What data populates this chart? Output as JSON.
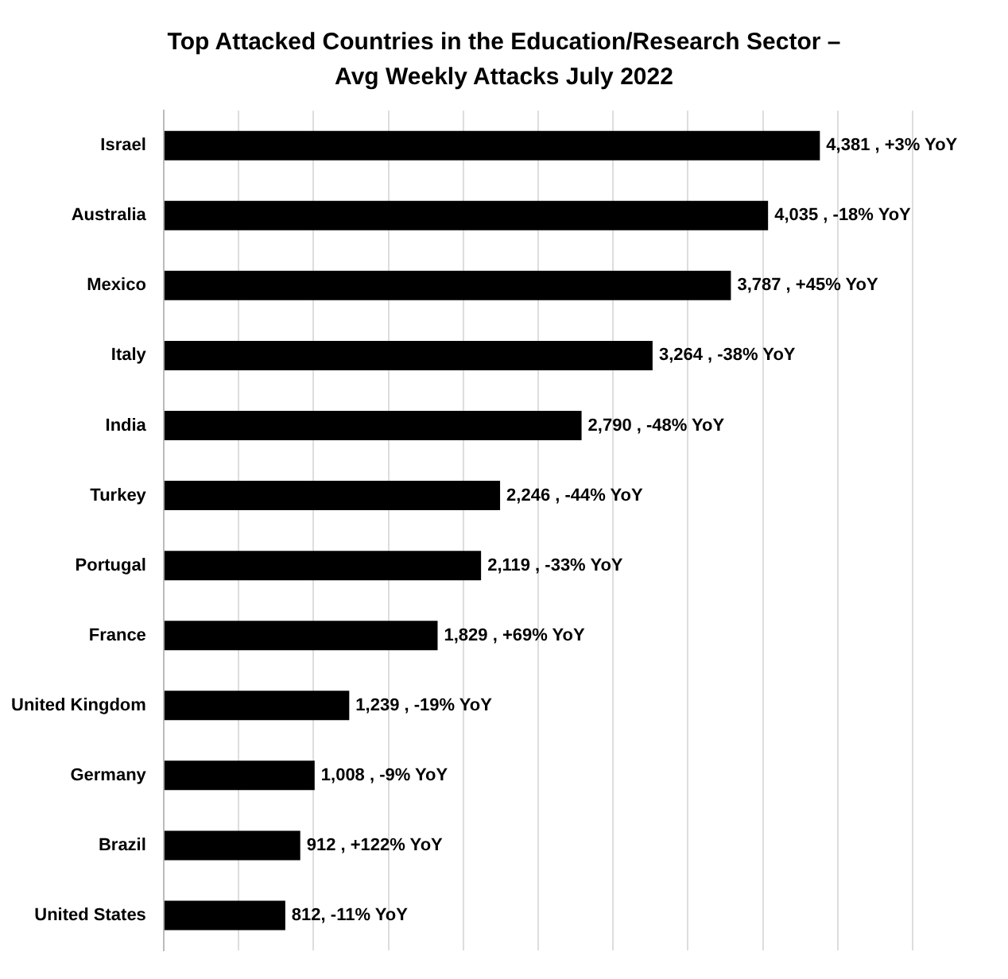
{
  "chart_data": {
    "type": "bar",
    "orientation": "horizontal",
    "title": "Top Attacked Countries in the Education/Research Sector –\nAvg Weekly Attacks July 2022",
    "categories": [
      "Israel",
      "Australia",
      "Mexico",
      "Italy",
      "India",
      "Turkey",
      "Portugal",
      "France",
      "United Kingdom",
      "Germany",
      "Brazil",
      "United States"
    ],
    "values": [
      4381,
      4035,
      3787,
      3264,
      2790,
      2246,
      2119,
      1829,
      1239,
      1008,
      912,
      812
    ],
    "value_labels": [
      "4,381 , +3% YoY",
      "4,035 , -18% YoY",
      "3,787 , +45% YoY",
      "3,264 , -38% YoY",
      "2,790 , -48% YoY",
      "2,246 , -44% YoY",
      "2,119 , -33% YoY",
      "1,829 , +69% YoY",
      "1,239 , -19% YoY",
      "1,008 , -9% YoY",
      "912 , +122% YoY",
      "812, -11% YoY"
    ],
    "color": "#000000",
    "xlim": [
      0,
      5000
    ],
    "xticks": [
      {
        "value": 0,
        "label": null
      },
      {
        "value": 500,
        "label": null
      },
      {
        "value": 1000,
        "label": null
      },
      {
        "value": 1500,
        "label": null
      },
      {
        "value": 2000,
        "label": null
      },
      {
        "value": 2500,
        "label": null
      },
      {
        "value": 3000,
        "label": null
      },
      {
        "value": 3500,
        "label": null
      },
      {
        "value": 4000,
        "label": null
      },
      {
        "value": 4500,
        "label": null
      },
      {
        "value": 5000,
        "label": null
      }
    ],
    "grid": "x",
    "tick_labels": "y",
    "legend": false
  }
}
